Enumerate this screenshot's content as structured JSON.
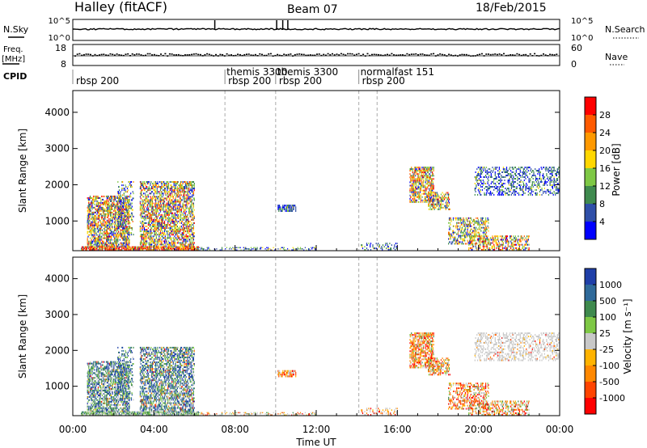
{
  "header": {
    "station": "Halley (fitACF)",
    "beam": "Beam 07",
    "date": "18/Feb/2015"
  },
  "labels": {
    "nsky": "N.Sky",
    "nsearch": "N.Search",
    "freq": "Freq.",
    "freq_unit": "[MHz]",
    "nave": "Nave",
    "cpid": "CPID",
    "xlabel": "Time UT",
    "ylabel": "Slant Range [km]",
    "power_cb_label": "Power [dB]",
    "velocity_cb_label": "Velocity [m s⁻¹]"
  },
  "noise_panel": {
    "left_ticks": [
      "10^5",
      "10^0"
    ],
    "right_ticks": [
      "10^5",
      "10^0"
    ]
  },
  "freq_panel": {
    "left_ticks": [
      "18",
      "8"
    ],
    "right_ticks": [
      "60",
      "0"
    ]
  },
  "cpid_segments": [
    {
      "start": 0.0,
      "end": 7.5,
      "label": "rbsp 200",
      "label2": ""
    },
    {
      "start": 7.5,
      "end": 10.0,
      "label": "rbsp 200",
      "label2": "themis 3300"
    },
    {
      "start": 10.0,
      "end": 14.1,
      "label": "rbsp 200",
      "label2": "themis 3300"
    },
    {
      "start": 14.1,
      "end": 24.0,
      "label": "rbsp 200",
      "label2": "normalfast 151"
    }
  ],
  "chart_data": {
    "type": "heatmap",
    "xlabel": "Time UT",
    "ylabel": "Slant Range [km]",
    "x_ticks": [
      "00:00",
      "04:00",
      "08:00",
      "12:00",
      "16:00",
      "20:00",
      "00:00"
    ],
    "xlim_hours": [
      0,
      24
    ],
    "y_ticks": [
      1000,
      2000,
      3000,
      4000
    ],
    "ylim_km": [
      180,
      4600
    ],
    "mode_change_hours": [
      7.5,
      10.0,
      14.1,
      15.0
    ],
    "power_colorbar": {
      "ticks": [
        "28",
        "24",
        "20",
        "16",
        "12",
        "8",
        "4"
      ],
      "colors": [
        "#ff0000",
        "#ff5a00",
        "#ff9900",
        "#ffd700",
        "#7ec845",
        "#3f8a4e",
        "#2f4fa8",
        "#0000ff"
      ]
    },
    "velocity_colorbar": {
      "ticks": [
        "1000",
        "500",
        "100",
        "25",
        "-25",
        "-100",
        "-500",
        "-1000"
      ],
      "colors": [
        "#1f3fa8",
        "#2f6a9a",
        "#3f8a4e",
        "#7ec845",
        "#c8c8c8",
        "#ffb300",
        "#ff8800",
        "#ff4400",
        "#ff0000"
      ]
    },
    "echo_regions": [
      {
        "t0": 0.7,
        "t1": 2.8,
        "r0": 280,
        "r1": 1700,
        "pmix": [
          0.35,
          0.35,
          0.2,
          0.1
        ],
        "vmix": [
          0.45,
          0.35,
          0.15,
          0.05
        ],
        "density": 0.55
      },
      {
        "t0": 2.2,
        "t1": 3.0,
        "r0": 600,
        "r1": 2100,
        "pmix": [
          0.6,
          0.3,
          0.1,
          0
        ],
        "vmix": [
          0.55,
          0.35,
          0.1,
          0
        ],
        "density": 0.25
      },
      {
        "t0": 3.3,
        "t1": 6.0,
        "r0": 280,
        "r1": 2100,
        "pmix": [
          0.35,
          0.35,
          0.2,
          0.1
        ],
        "vmix": [
          0.45,
          0.3,
          0.15,
          0.1
        ],
        "density": 0.5
      },
      {
        "t0": 0.4,
        "t1": 6.2,
        "r0": 180,
        "r1": 300,
        "pmix": [
          0.1,
          0.2,
          0.35,
          0.35
        ],
        "vmix": [
          0.1,
          0.5,
          0.4,
          0
        ],
        "density": 0.75
      },
      {
        "t0": 6.2,
        "t1": 12.0,
        "r0": 180,
        "r1": 280,
        "pmix": [
          0.7,
          0.3,
          0,
          0
        ],
        "vmix": [
          0,
          0.2,
          0.5,
          0.3
        ],
        "density": 0.25
      },
      {
        "t0": 10.1,
        "t1": 11.0,
        "r0": 1250,
        "r1": 1450,
        "pmix": [
          0.85,
          0.15,
          0,
          0
        ],
        "vmix": [
          0,
          0,
          0.3,
          0.7
        ],
        "density": 0.6
      },
      {
        "t0": 14.2,
        "t1": 16.0,
        "r0": 180,
        "r1": 400,
        "pmix": [
          0.85,
          0.15,
          0,
          0
        ],
        "vmix": [
          0,
          0,
          0.4,
          0.6
        ],
        "density": 0.2
      },
      {
        "t0": 16.6,
        "t1": 17.8,
        "r0": 1500,
        "r1": 2500,
        "pmix": [
          0.25,
          0.35,
          0.3,
          0.1
        ],
        "vmix": [
          0,
          0.1,
          0.2,
          0.7
        ],
        "density": 0.55
      },
      {
        "t0": 17.5,
        "t1": 18.6,
        "r0": 1300,
        "r1": 1800,
        "pmix": [
          0.3,
          0.35,
          0.25,
          0.1
        ],
        "vmix": [
          0,
          0.2,
          0.2,
          0.6
        ],
        "density": 0.45
      },
      {
        "t0": 18.5,
        "t1": 20.5,
        "r0": 350,
        "r1": 1100,
        "pmix": [
          0.4,
          0.4,
          0.2,
          0
        ],
        "vmix": [
          0,
          0.1,
          0.2,
          0.7
        ],
        "density": 0.35
      },
      {
        "t0": 19.5,
        "t1": 22.5,
        "r0": 180,
        "r1": 600,
        "pmix": [
          0.3,
          0.3,
          0.25,
          0.15
        ],
        "vmix": [
          0,
          0.2,
          0.3,
          0.5
        ],
        "density": 0.35
      },
      {
        "t0": 19.8,
        "t1": 24.0,
        "r0": 1700,
        "r1": 2500,
        "pmix": [
          0.9,
          0.1,
          0,
          0
        ],
        "vmix": [
          0,
          0,
          0.9,
          0.1
        ],
        "density": 0.3
      }
    ]
  }
}
